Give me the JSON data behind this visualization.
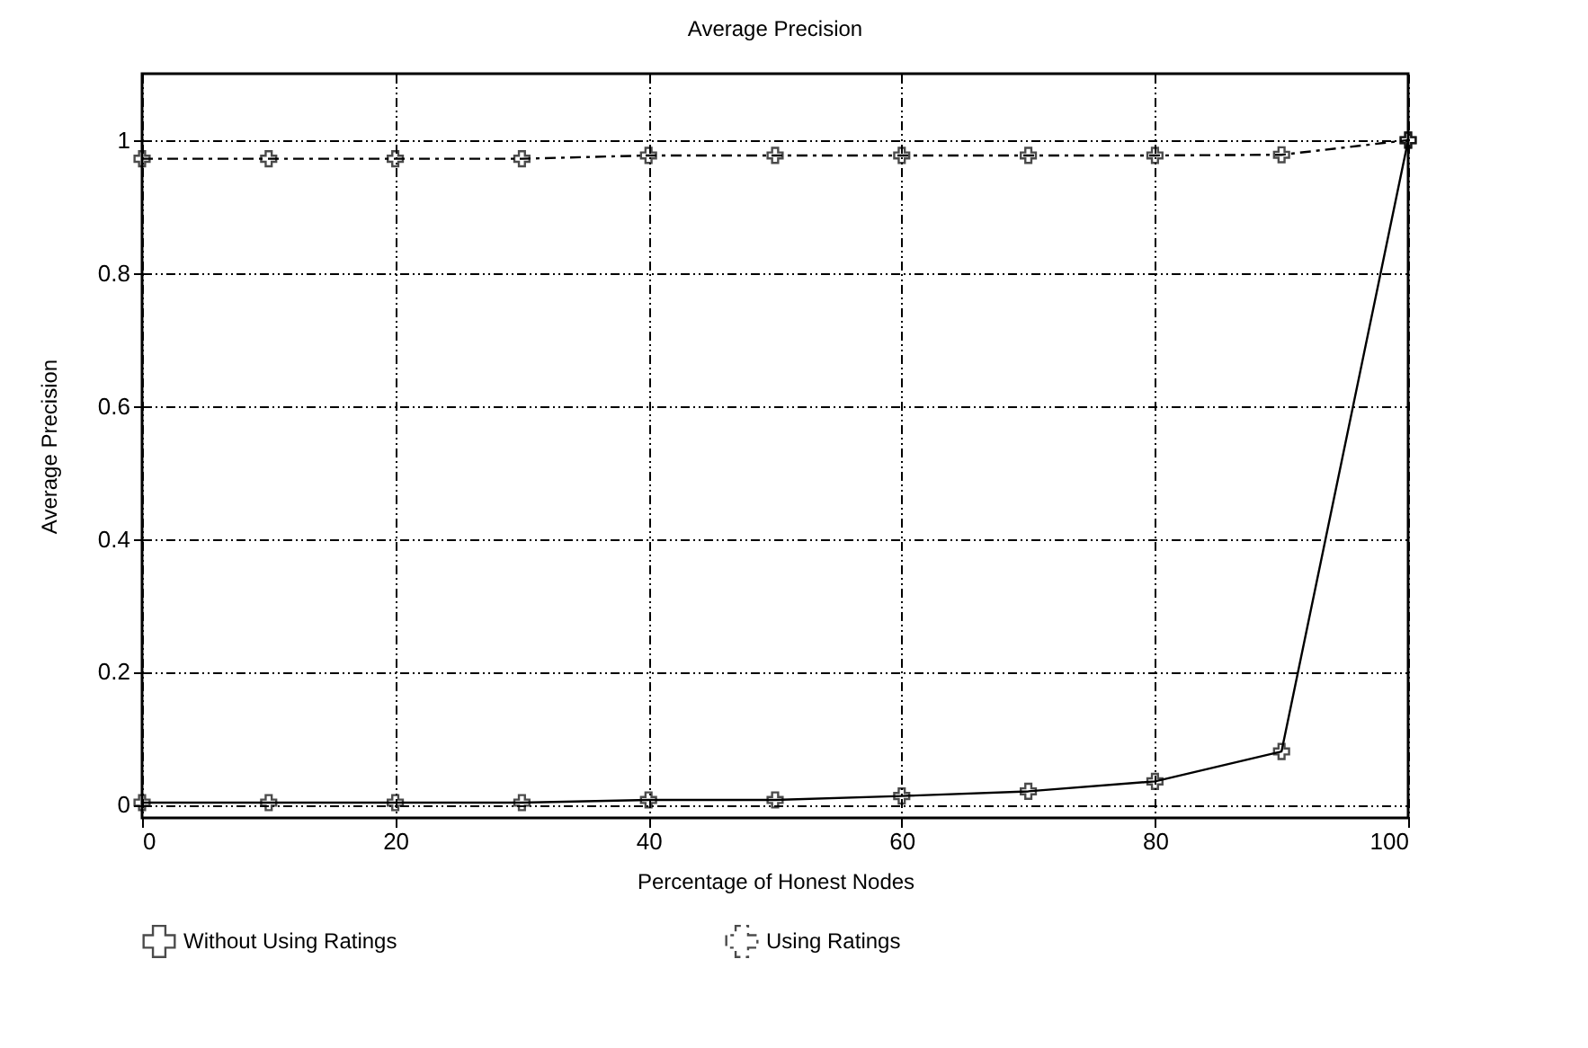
{
  "chart_data": {
    "type": "line",
    "title": "Average Precision",
    "xlabel": "Percentage of Honest Nodes",
    "ylabel": "Average Precision",
    "x": [
      0,
      10,
      20,
      30,
      40,
      50,
      60,
      70,
      80,
      90,
      100
    ],
    "series": [
      {
        "name": "Without Using Ratings",
        "color": "#000000",
        "marker": "cross",
        "line_style": "solid",
        "values": [
          0.003,
          0.003,
          0.003,
          0.003,
          0.007,
          0.007,
          0.013,
          0.02,
          0.035,
          0.08,
          1.0
        ]
      },
      {
        "name": "Using Ratings",
        "color": "#000000",
        "marker": "cross",
        "line_style": "dashed",
        "values": [
          0.972,
          0.972,
          0.972,
          0.972,
          0.977,
          0.977,
          0.977,
          0.977,
          0.977,
          0.978,
          1.0
        ]
      }
    ],
    "xlim": [
      0,
      100
    ],
    "xticks": [
      0,
      20,
      40,
      60,
      80,
      100
    ],
    "ylim": [
      -0.02,
      1.1
    ],
    "yticks": [
      0,
      0.2,
      0.4,
      0.6,
      0.8,
      1
    ],
    "grid": true,
    "legend": "bottom"
  }
}
